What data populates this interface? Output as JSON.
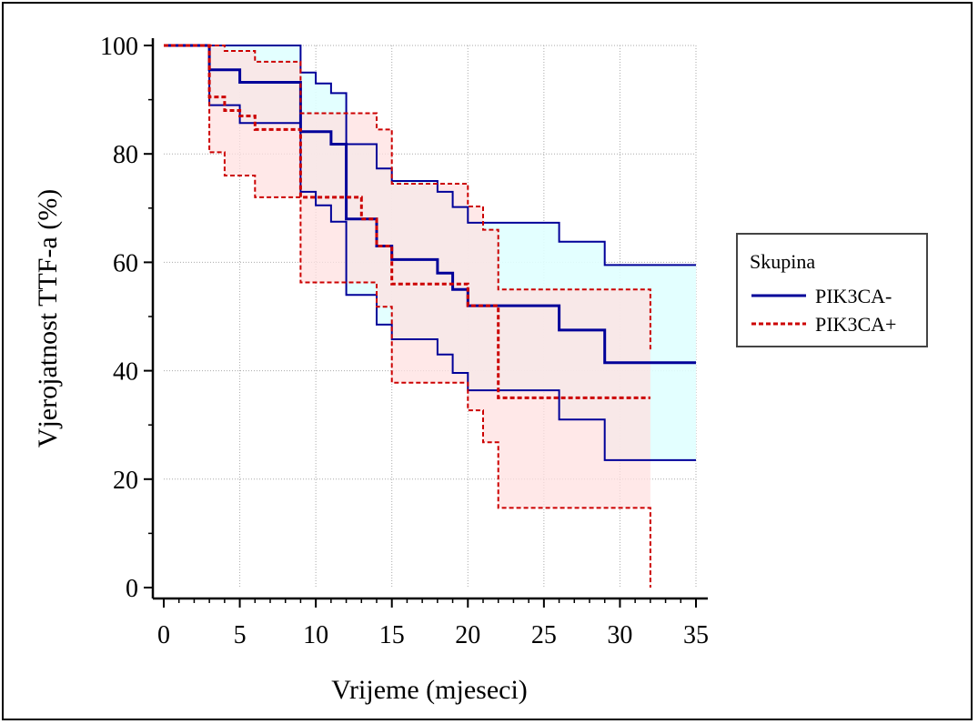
{
  "chart_data": {
    "type": "line",
    "chart_style": "kaplan-meier step curves with confidence bands",
    "xlabel": "Vrijeme (mjeseci)",
    "ylabel": "Vjerojatnost TTF-a (%)",
    "xlim": [
      0,
      35
    ],
    "ylim": [
      0,
      100
    ],
    "x_ticks": [
      0,
      5,
      10,
      15,
      20,
      25,
      30,
      35
    ],
    "y_ticks": [
      0,
      20,
      40,
      60,
      80,
      100
    ],
    "grid": true,
    "legend": {
      "title": "Skupina",
      "placement": "right",
      "entries": [
        "PIK3CA-",
        "PIK3CA+"
      ]
    },
    "series": [
      {
        "name": "PIK3CA-",
        "color": "#000099",
        "line_style": "solid",
        "band_fill": "#e0ffff",
        "survival": [
          [
            0,
            100
          ],
          [
            3,
            95.5
          ],
          [
            5,
            93.2
          ],
          [
            9,
            84.1
          ],
          [
            11,
            81.8
          ],
          [
            12,
            79.5
          ],
          [
            12,
            68
          ],
          [
            14,
            63
          ],
          [
            15,
            60.5
          ],
          [
            18,
            58
          ],
          [
            19,
            55
          ],
          [
            20,
            52
          ],
          [
            26,
            47.5
          ],
          [
            29,
            41.5
          ],
          [
            35,
            41.5
          ]
        ],
        "upper_ci": [
          [
            0,
            100
          ],
          [
            9,
            100
          ],
          [
            9,
            95
          ],
          [
            10,
            93
          ],
          [
            11,
            91.2
          ],
          [
            12,
            81.8
          ],
          [
            14,
            77.3
          ],
          [
            15,
            75
          ],
          [
            18,
            73
          ],
          [
            19,
            70.2
          ],
          [
            20,
            67.3
          ],
          [
            26,
            63.8
          ],
          [
            29,
            59.5
          ],
          [
            35,
            59.5
          ]
        ],
        "lower_ci": [
          [
            0,
            100
          ],
          [
            3,
            89
          ],
          [
            4,
            89
          ],
          [
            5,
            85.7
          ],
          [
            9,
            73
          ],
          [
            10,
            70.5
          ],
          [
            11,
            67.5
          ],
          [
            12,
            54
          ],
          [
            14,
            48.5
          ],
          [
            15,
            45.8
          ],
          [
            18,
            43
          ],
          [
            19,
            39.6
          ],
          [
            20,
            36.4
          ],
          [
            26,
            31
          ],
          [
            29,
            23.5
          ],
          [
            35,
            23.5
          ]
        ]
      },
      {
        "name": "PIK3CA+",
        "color": "#cc0000",
        "line_style": "dashed",
        "band_fill": "#ffe0e0",
        "survival": [
          [
            0,
            100
          ],
          [
            3,
            90.5
          ],
          [
            4,
            88
          ],
          [
            5,
            87
          ],
          [
            6,
            84.5
          ],
          [
            9,
            72
          ],
          [
            13,
            68
          ],
          [
            14,
            63
          ],
          [
            15,
            56
          ],
          [
            20,
            52
          ],
          [
            22,
            35
          ],
          [
            32,
            35
          ]
        ],
        "upper_ci": [
          [
            0,
            100
          ],
          [
            3,
            100
          ],
          [
            4,
            99
          ],
          [
            6,
            97
          ],
          [
            9,
            87.5
          ],
          [
            14,
            84.5
          ],
          [
            15,
            74.5
          ],
          [
            20,
            70.3
          ],
          [
            21,
            66
          ],
          [
            22,
            55
          ],
          [
            32,
            55
          ],
          [
            32,
            43.5
          ]
        ],
        "lower_ci": [
          [
            0,
            100
          ],
          [
            3,
            80.3
          ],
          [
            4,
            76
          ],
          [
            6,
            72
          ],
          [
            9,
            56.3
          ],
          [
            14,
            51.8
          ],
          [
            15,
            37.8
          ],
          [
            20,
            32.7
          ],
          [
            21,
            26.8
          ],
          [
            22,
            14.7
          ],
          [
            32,
            14.7
          ],
          [
            32,
            0
          ]
        ]
      }
    ]
  }
}
